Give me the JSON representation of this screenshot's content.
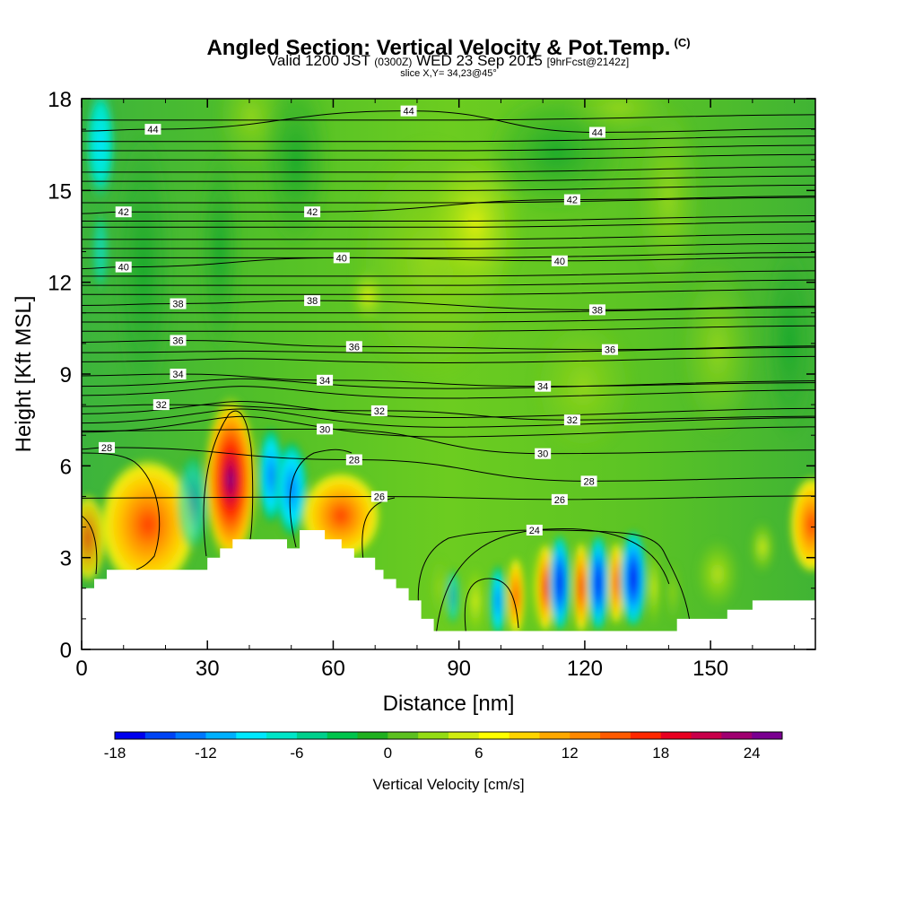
{
  "header": {
    "title": "Angled Section: Vertical Velocity & Pot.Temp.",
    "title_suffix": "(C)",
    "valid_prefix": "Valid 1200 JST",
    "valid_zulu": "(0300Z)",
    "valid_date": "WED 23 Sep 2015",
    "forecast": "[9hrFcst@2142z]",
    "slice": "slice X,Y= 34,23@45°"
  },
  "chart_data": {
    "type": "heatmap",
    "xlabel": "Distance [nm]",
    "ylabel": "Height [Kft MSL]",
    "xlim": [
      0,
      175
    ],
    "ylim": [
      0,
      18
    ],
    "x_ticks": [
      0,
      30,
      60,
      90,
      120,
      150
    ],
    "y_ticks": [
      0,
      3,
      6,
      9,
      12,
      15,
      18
    ],
    "colorbar": {
      "label": "Vertical Velocity [cm/s]",
      "min": -18,
      "max": 27,
      "step": 2,
      "ticks": [
        -18,
        -12,
        -6,
        0,
        6,
        12,
        18,
        24
      ],
      "colors": [
        "#0000ee",
        "#0044f5",
        "#0078ff",
        "#00b0ff",
        "#00e8ff",
        "#00e6c8",
        "#00d08c",
        "#00c44c",
        "#20b020",
        "#5cc020",
        "#94dc14",
        "#d0ec10",
        "#ffff00",
        "#ffd400",
        "#ffa800",
        "#ff8800",
        "#ff5a00",
        "#ff2800",
        "#e80020",
        "#c8004a",
        "#a00070",
        "#7a0090"
      ]
    },
    "terrain_nm_kft": [
      [
        0,
        2
      ],
      [
        3,
        2
      ],
      [
        3,
        2.3
      ],
      [
        6,
        2.3
      ],
      [
        6,
        2.6
      ],
      [
        30,
        2.6
      ],
      [
        30,
        3
      ],
      [
        33,
        3
      ],
      [
        33,
        3.3
      ],
      [
        36,
        3.3
      ],
      [
        36,
        3.6
      ],
      [
        49,
        3.6
      ],
      [
        49,
        3.3
      ],
      [
        52,
        3.3
      ],
      [
        52,
        3.9
      ],
      [
        58,
        3.9
      ],
      [
        58,
        3.6
      ],
      [
        62,
        3.6
      ],
      [
        62,
        3.3
      ],
      [
        65,
        3.3
      ],
      [
        65,
        3
      ],
      [
        70,
        3
      ],
      [
        70,
        2.6
      ],
      [
        72,
        2.6
      ],
      [
        72,
        2.3
      ],
      [
        75,
        2.3
      ],
      [
        75,
        2
      ],
      [
        78,
        2
      ],
      [
        78,
        1.6
      ],
      [
        81,
        1.6
      ],
      [
        81,
        1
      ],
      [
        84,
        1
      ],
      [
        84,
        0.6
      ],
      [
        130,
        0.6
      ],
      [
        130,
        0.6
      ],
      [
        142,
        0.6
      ],
      [
        142,
        1
      ],
      [
        154,
        1
      ],
      [
        154,
        1.3
      ],
      [
        160,
        1.3
      ],
      [
        160,
        1.6
      ],
      [
        175,
        1.6
      ]
    ],
    "theta_isolines": [
      {
        "value": 24,
        "labels": [
          [
            108,
            3.9
          ]
        ]
      },
      {
        "value": 26,
        "labels": [
          [
            71,
            5
          ],
          [
            114,
            4.9
          ]
        ]
      },
      {
        "value": 28,
        "labels": [
          [
            6,
            6.6
          ],
          [
            65,
            6.2
          ],
          [
            121,
            5.5
          ]
        ]
      },
      {
        "value": 30,
        "labels": [
          [
            58,
            7.2
          ],
          [
            110,
            6.4
          ]
        ]
      },
      {
        "value": 32,
        "labels": [
          [
            19,
            8
          ],
          [
            71,
            7.8
          ],
          [
            117,
            7.5
          ]
        ]
      },
      {
        "value": 34,
        "labels": [
          [
            23,
            9
          ],
          [
            58,
            8.8
          ],
          [
            110,
            8.6
          ]
        ]
      },
      {
        "value": 36,
        "labels": [
          [
            23,
            10.1
          ],
          [
            65,
            9.9
          ],
          [
            126,
            9.8
          ]
        ]
      },
      {
        "value": 38,
        "labels": [
          [
            23,
            11.3
          ],
          [
            55,
            11.4
          ],
          [
            123,
            11.1
          ]
        ]
      },
      {
        "value": 40,
        "labels": [
          [
            10,
            12.5
          ],
          [
            62,
            12.8
          ],
          [
            114,
            12.7
          ]
        ]
      },
      {
        "value": 42,
        "labels": [
          [
            10,
            14.3
          ],
          [
            55,
            14.3
          ],
          [
            117,
            14.7
          ]
        ]
      },
      {
        "value": 44,
        "labels": [
          [
            17,
            17
          ],
          [
            78,
            17.6
          ],
          [
            123,
            16.9
          ]
        ]
      }
    ]
  }
}
